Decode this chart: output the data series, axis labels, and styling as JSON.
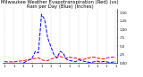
{
  "title": "Milwaukee Weather Evapotranspiration (Red) (vs) Rain per Day (Blue) (Inches)",
  "n_points": 37,
  "rain": [
    0.0,
    0.0,
    0.0,
    0.0,
    0.0,
    0.0,
    0.0,
    0.05,
    0.1,
    0.15,
    0.35,
    0.3,
    1.45,
    1.3,
    0.75,
    0.5,
    0.25,
    0.15,
    0.35,
    0.3,
    0.12,
    0.08,
    0.06,
    0.04,
    0.1,
    0.07,
    0.05,
    0.03,
    0.02,
    0.04,
    0.06,
    0.03,
    0.05,
    0.04,
    0.02,
    0.03,
    0.04
  ],
  "et": [
    0.05,
    0.04,
    0.04,
    0.04,
    0.05,
    0.06,
    0.07,
    0.09,
    0.1,
    0.12,
    0.14,
    0.16,
    0.1,
    0.08,
    0.07,
    0.12,
    0.15,
    0.18,
    0.2,
    0.17,
    0.15,
    0.18,
    0.16,
    0.15,
    0.13,
    0.1,
    0.12,
    0.15,
    0.17,
    0.18,
    0.15,
    0.14,
    0.12,
    0.15,
    0.17,
    0.18,
    0.17
  ],
  "rain_color": "#0000ff",
  "et_color": "#ff0000",
  "background_color": "#ffffff",
  "grid_color": "#888888",
  "ylim": [
    0.0,
    1.6
  ],
  "yticks": [
    0.0,
    0.25,
    0.5,
    0.75,
    1.0,
    1.25,
    1.5
  ],
  "ytick_labels": [
    "0.00",
    ".25",
    ".50",
    ".75",
    "1.00",
    "1.25",
    "1.50"
  ],
  "xtick_positions": [
    0,
    3,
    6,
    9,
    12,
    15,
    18,
    21,
    24,
    27,
    30,
    33,
    36
  ],
  "xtick_labels": [
    "1",
    "1",
    "1",
    "1",
    "1",
    "1",
    "1",
    "1",
    "1",
    "1",
    "1",
    "1",
    "1"
  ],
  "title_fontsize": 3.8,
  "tick_fontsize": 2.8,
  "line_width": 0.7
}
